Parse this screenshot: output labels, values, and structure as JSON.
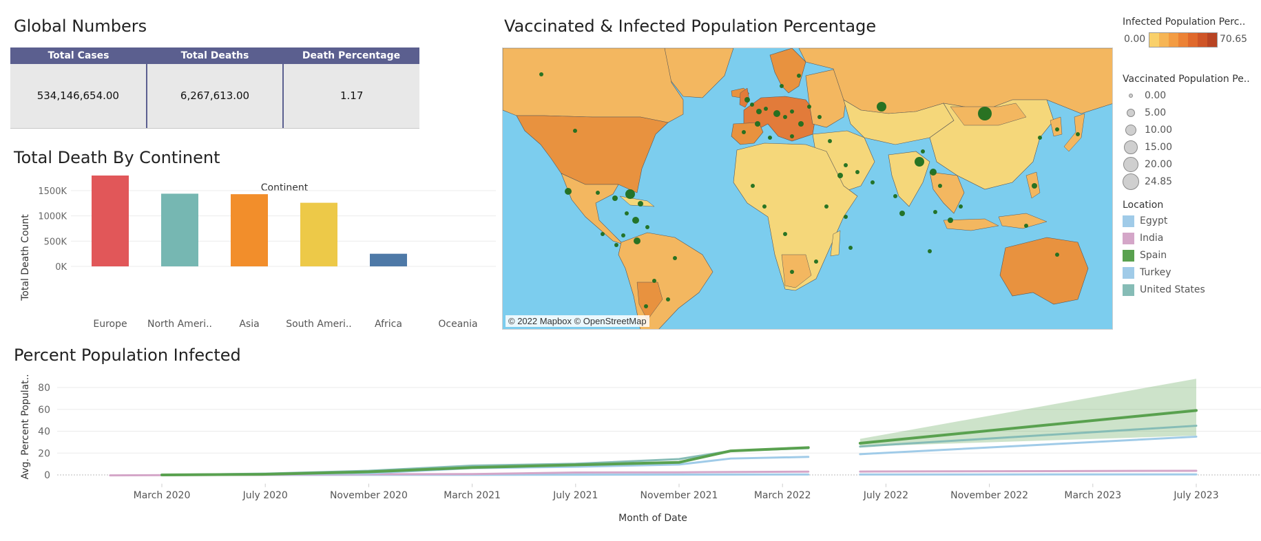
{
  "global_numbers": {
    "title": "Global Numbers",
    "headers": [
      "Total Cases",
      "Total Deaths",
      "Death Percentage"
    ],
    "values": [
      "534,146,654.00",
      "6,267,613.00",
      "1.17"
    ]
  },
  "death_chart": {
    "title": "Total Death By Continent",
    "header": "Continent",
    "ylabel": "Total Death Count",
    "yticks": [
      "0K",
      "500K",
      "1000K",
      "1500K"
    ],
    "xticklabels": [
      "Europe",
      "North Ameri..",
      "Asia",
      "South Ameri..",
      "Africa",
      "Oceania"
    ]
  },
  "map": {
    "title": "Vaccinated & Infected Population Percentage",
    "attribution": "© 2022 Mapbox © OpenStreetMap",
    "colors": {
      "ocean": "#7ccdee",
      "land_low": "#f5d77a",
      "land_mid": "#f3b760",
      "land_high": "#e27b3a",
      "dot": "#1f6f1f"
    }
  },
  "legend": {
    "infected_title": "Infected Population Perc..",
    "infected_min": "0.00",
    "infected_max": "70.65",
    "infected_colors": [
      "#f9d06a",
      "#f6b555",
      "#f39c43",
      "#ec8235",
      "#e0692c",
      "#cf5527",
      "#b84423"
    ],
    "vaccinated_title": "Vaccinated Population Pe..",
    "vaccinated_sizes": [
      "0.00",
      "5.00",
      "10.00",
      "15.00",
      "20.00",
      "24.85"
    ],
    "location_title": "Location",
    "locations": [
      {
        "name": "Egypt",
        "color": "#a0cbe8"
      },
      {
        "name": "India",
        "color": "#d4a6c8"
      },
      {
        "name": "Spain",
        "color": "#59a14f"
      },
      {
        "name": "Turkey",
        "color": "#a0cbe8"
      },
      {
        "name": "United States",
        "color": "#86bcb6"
      }
    ]
  },
  "infected_chart": {
    "title": "Percent Population Infected",
    "xlabel": "Month of Date",
    "ylabel": "Avg. Percent Populat..",
    "yticks": [
      "0",
      "20",
      "40",
      "60",
      "80"
    ],
    "xticks": [
      "March 2020",
      "July 2020",
      "November 2020",
      "March 2021",
      "July 2021",
      "November 2021",
      "March 2022",
      "July 2022",
      "November 2022",
      "March 2023",
      "July 2023"
    ]
  },
  "chart_data": [
    {
      "type": "bar",
      "title": "Total Death By Continent",
      "xlabel": "Continent",
      "ylabel": "Total Death Count",
      "categories": [
        "Europe",
        "North Ameri..",
        "Asia",
        "South Ameri..",
        "Africa",
        "Oceania"
      ],
      "values": [
        1880000,
        1440000,
        1430000,
        1260000,
        250000,
        0
      ],
      "colors": [
        "#e15759",
        "#76b7b2",
        "#f28e2b",
        "#edc948",
        "#4e79a7",
        "#bab0ac"
      ],
      "ylim": [
        0,
        1900000
      ],
      "grid": true
    },
    {
      "type": "line",
      "title": "Percent Population Infected",
      "xlabel": "Month of Date",
      "ylabel": "Avg. Percent Populat..",
      "ylim": [
        -5,
        90
      ],
      "x_start": "2020-01",
      "x_end": "2023-07",
      "xticks": [
        "2020-03",
        "2020-07",
        "2020-11",
        "2021-03",
        "2021-07",
        "2021-11",
        "2022-03",
        "2022-07",
        "2022-11",
        "2023-03",
        "2023-07"
      ],
      "series": [
        {
          "name": "Spain",
          "color": "#59a14f",
          "historical": [
            [
              "2020-03",
              0
            ],
            [
              "2020-07",
              0.6
            ],
            [
              "2020-11",
              2.8
            ],
            [
              "2021-03",
              6.8
            ],
            [
              "2021-07",
              9.2
            ],
            [
              "2021-11",
              11.5
            ],
            [
              "2022-01",
              22
            ],
            [
              "2022-04",
              25
            ]
          ],
          "forecast": [
            [
              "2022-06",
              29
            ],
            [
              "2023-07",
              59
            ]
          ],
          "forecast_band": [
            [
              "2022-06",
              26,
              33
            ],
            [
              "2023-07",
              36,
              88
            ]
          ]
        },
        {
          "name": "United States",
          "color": "#86bcb6",
          "historical": [
            [
              "2020-03",
              0
            ],
            [
              "2020-07",
              1.2
            ],
            [
              "2020-11",
              3.8
            ],
            [
              "2021-03",
              8.5
            ],
            [
              "2021-07",
              10.2
            ],
            [
              "2021-11",
              14.5
            ],
            [
              "2022-01",
              22
            ],
            [
              "2022-04",
              24.5
            ]
          ],
          "forecast": [
            [
              "2022-06",
              26
            ],
            [
              "2023-07",
              45
            ]
          ]
        },
        {
          "name": "Turkey",
          "color": "#a0cbe8",
          "historical": [
            [
              "2020-03",
              0
            ],
            [
              "2020-07",
              0.4
            ],
            [
              "2020-11",
              1.5
            ],
            [
              "2021-03",
              6.2
            ],
            [
              "2021-07",
              7.5
            ],
            [
              "2021-11",
              9.5
            ],
            [
              "2022-01",
              15
            ],
            [
              "2022-04",
              16.5
            ]
          ],
          "forecast": [
            [
              "2022-06",
              19
            ],
            [
              "2023-07",
              35
            ]
          ]
        },
        {
          "name": "India",
          "color": "#d4a6c8",
          "historical": [
            [
              "2020-01",
              -0.4
            ],
            [
              "2020-07",
              0.1
            ],
            [
              "2020-11",
              0.6
            ],
            [
              "2021-03",
              0.8
            ],
            [
              "2021-07",
              2.2
            ],
            [
              "2021-11",
              2.4
            ],
            [
              "2022-04",
              3.0
            ]
          ],
          "forecast": [
            [
              "2022-06",
              3.1
            ],
            [
              "2023-07",
              3.8
            ]
          ]
        },
        {
          "name": "Egypt",
          "color": "#a0cbe8",
          "historical": [
            [
              "2020-03",
              0
            ],
            [
              "2021-03",
              0.1
            ],
            [
              "2022-04",
              0.4
            ]
          ],
          "forecast": [
            [
              "2022-06",
              0.4
            ],
            [
              "2023-07",
              0.5
            ]
          ]
        }
      ]
    }
  ]
}
